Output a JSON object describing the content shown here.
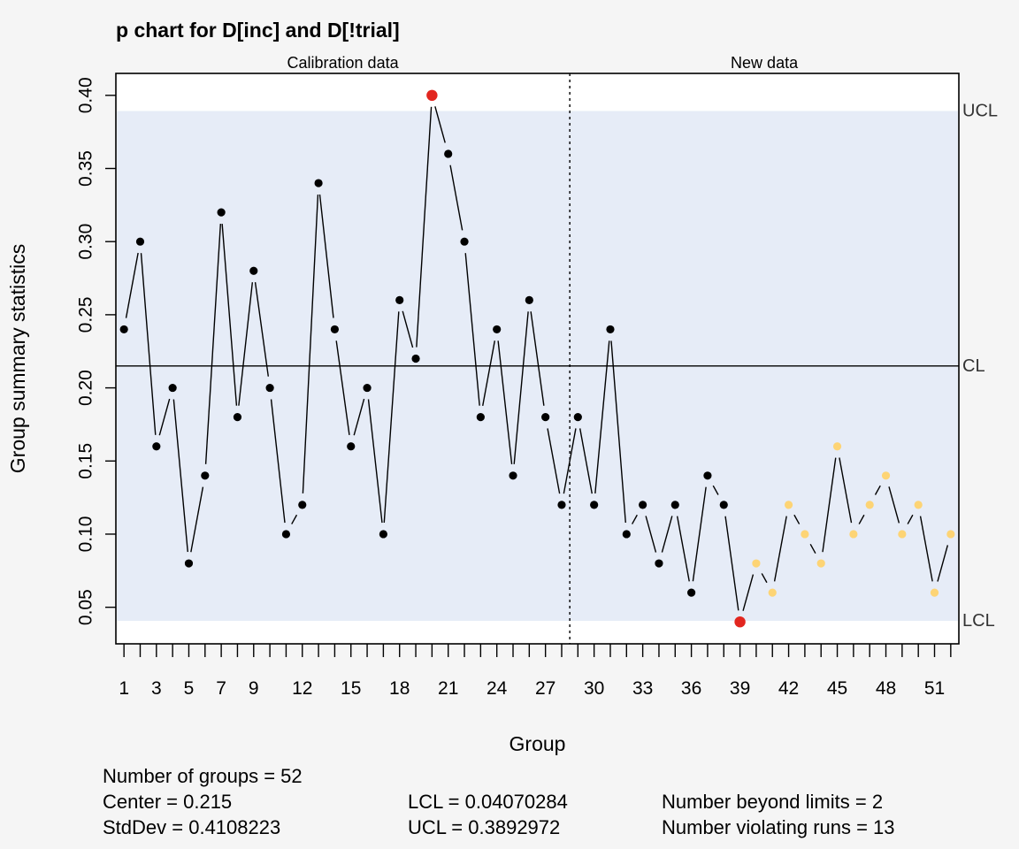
{
  "chart_data": {
    "type": "line",
    "title": "p chart for D[inc] and D[!trial]",
    "xlabel": "Group",
    "ylabel": "Group summary statistics",
    "section_labels": [
      "Calibration data",
      "New data"
    ],
    "calibration_last_group": 28,
    "xlim": [
      0.5,
      52.5
    ],
    "ylim": [
      0.025,
      0.415
    ],
    "y_ticks": [
      "0.05",
      "0.10",
      "0.15",
      "0.20",
      "0.25",
      "0.30",
      "0.35",
      "0.40"
    ],
    "x_tick_labels": [
      "1",
      "3",
      "5",
      "7",
      "9",
      "12",
      "15",
      "18",
      "21",
      "24",
      "27",
      "30",
      "33",
      "36",
      "39",
      "42",
      "45",
      "48",
      "51"
    ],
    "center": 0.215,
    "lcl": 0.04070284,
    "ucl": 0.3892972,
    "limit_labels": {
      "ucl": "UCL",
      "cl": "CL",
      "lcl": "LCL"
    },
    "groups": [
      1,
      2,
      3,
      4,
      5,
      6,
      7,
      8,
      9,
      10,
      11,
      12,
      13,
      14,
      15,
      16,
      17,
      18,
      19,
      20,
      21,
      22,
      23,
      24,
      25,
      26,
      27,
      28,
      29,
      30,
      31,
      32,
      33,
      34,
      35,
      36,
      37,
      38,
      39,
      40,
      41,
      42,
      43,
      44,
      45,
      46,
      47,
      48,
      49,
      50,
      51,
      52
    ],
    "values": [
      0.24,
      0.3,
      0.16,
      0.2,
      0.08,
      0.14,
      0.32,
      0.18,
      0.28,
      0.2,
      0.1,
      0.12,
      0.34,
      0.24,
      0.16,
      0.2,
      0.1,
      0.26,
      0.22,
      0.4,
      0.36,
      0.3,
      0.18,
      0.24,
      0.14,
      0.26,
      0.18,
      0.12,
      0.18,
      0.12,
      0.24,
      0.1,
      0.12,
      0.08,
      0.12,
      0.06,
      0.14,
      0.12,
      0.04,
      0.08,
      0.06,
      0.12,
      0.1,
      0.08,
      0.16,
      0.1,
      0.12,
      0.14,
      0.1,
      0.12,
      0.06,
      0.1
    ],
    "point_status": [
      "n",
      "n",
      "n",
      "n",
      "n",
      "n",
      "n",
      "n",
      "n",
      "n",
      "n",
      "n",
      "n",
      "n",
      "n",
      "n",
      "n",
      "n",
      "n",
      "beyond",
      "n",
      "n",
      "n",
      "n",
      "n",
      "n",
      "n",
      "n",
      "n",
      "n",
      "n",
      "n",
      "n",
      "n",
      "n",
      "n",
      "n",
      "n",
      "beyond",
      "run",
      "run",
      "run",
      "run",
      "run",
      "run",
      "run",
      "run",
      "run",
      "run",
      "run",
      "run",
      "run"
    ],
    "colors": {
      "background": "#f5f5f5",
      "plot_background": "#ffffff",
      "control_band": "#e6ecf7",
      "normal_point": "#000000",
      "beyond_limits": "#e2261f",
      "violating_runs": "#fdd475"
    }
  },
  "summary": {
    "number_of_groups": "Number of groups = 52",
    "center": "Center = 0.215",
    "stddev": "StdDev = 0.4108223",
    "lcl": "LCL = 0.04070284",
    "ucl": "UCL = 0.3892972",
    "beyond_limits": "Number beyond limits = 2",
    "violating_runs": "Number violating runs = 13"
  }
}
